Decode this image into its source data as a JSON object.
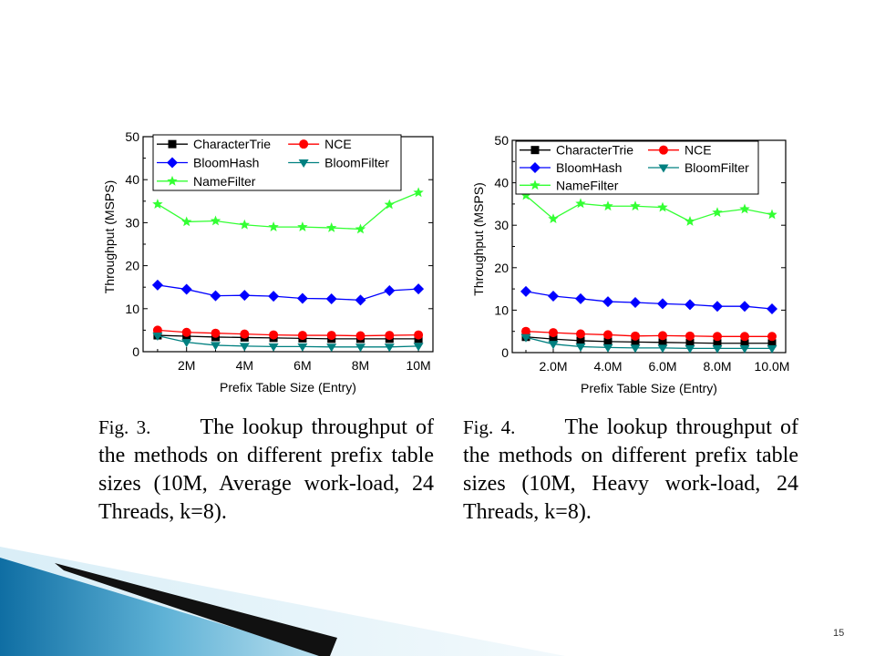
{
  "slide": {
    "page_number": "15"
  },
  "colors": {
    "CharacterTrie": "#000000",
    "NCE": "#ff0000",
    "BloomHash": "#0000ff",
    "BloomFilter": "#008080",
    "NameFilter": "#33ff33"
  },
  "captions": [
    {
      "fig": "Fig. 3.",
      "text": "The lookup throughput of the methods on different prefix table sizes (10M, Average work-load, 24 Threads, k=8)."
    },
    {
      "fig": "Fig. 4.",
      "text": "The lookup throughput of the methods on different prefix table sizes (10M, Heavy work-load, 24 Threads, k=8)."
    }
  ],
  "chart_data": [
    {
      "type": "line",
      "xlabel": "Prefix Table Size (Entry)",
      "ylabel": "Throughput (MSPS)",
      "x": [
        1,
        2,
        3,
        4,
        5,
        6,
        7,
        8,
        9,
        10
      ],
      "xlim": [
        0.5,
        10.5
      ],
      "xticks": [
        2,
        4,
        6,
        8,
        10
      ],
      "xtick_labels": [
        "2M",
        "4M",
        "6M",
        "8M",
        "10M"
      ],
      "ylim": [
        0,
        50
      ],
      "yticks": [
        0,
        10,
        20,
        30,
        40,
        50
      ],
      "ytick_labels": [
        "0",
        "10",
        "20",
        "30",
        "40",
        "50"
      ],
      "legend_position": "top",
      "series": [
        {
          "name": "CharacterTrie",
          "marker": "square",
          "values": [
            3.8,
            3.6,
            3.4,
            3.3,
            3.2,
            3.1,
            3.0,
            3.0,
            3.0,
            3.0
          ]
        },
        {
          "name": "NCE",
          "marker": "circle",
          "values": [
            5.0,
            4.5,
            4.3,
            4.1,
            3.9,
            3.8,
            3.8,
            3.7,
            3.8,
            3.9
          ]
        },
        {
          "name": "BloomHash",
          "marker": "diamond",
          "values": [
            15.5,
            14.5,
            13.0,
            13.1,
            12.9,
            12.4,
            12.3,
            12.0,
            14.2,
            14.6
          ]
        },
        {
          "name": "BloomFilter",
          "marker": "triangle-down",
          "values": [
            3.7,
            2.2,
            1.5,
            1.3,
            1.2,
            1.2,
            1.1,
            1.1,
            1.1,
            1.3
          ]
        },
        {
          "name": "NameFilter",
          "marker": "star",
          "values": [
            34.3,
            30.2,
            30.4,
            29.5,
            29.0,
            29.0,
            28.8,
            28.5,
            34.2,
            37.0
          ]
        }
      ]
    },
    {
      "type": "line",
      "xlabel": "Prefix Table Size (Entry)",
      "ylabel": "Throughput (MSPS)",
      "x": [
        1,
        2,
        3,
        4,
        5,
        6,
        7,
        8,
        9,
        10
      ],
      "xlim": [
        0.5,
        10.5
      ],
      "xticks": [
        2,
        4,
        6,
        8,
        10
      ],
      "xtick_labels": [
        "2.0M",
        "4.0M",
        "6.0M",
        "8.0M",
        "10.0M"
      ],
      "ylim": [
        0,
        50
      ],
      "yticks": [
        0,
        10,
        20,
        30,
        40,
        50
      ],
      "ytick_labels": [
        "0",
        "10",
        "20",
        "30",
        "40",
        "50"
      ],
      "legend_position": "top",
      "series": [
        {
          "name": "CharacterTrie",
          "marker": "square",
          "values": [
            3.7,
            3.2,
            2.8,
            2.6,
            2.5,
            2.4,
            2.3,
            2.2,
            2.2,
            2.2
          ]
        },
        {
          "name": "NCE",
          "marker": "circle",
          "values": [
            5.0,
            4.7,
            4.4,
            4.2,
            3.9,
            4.0,
            3.9,
            3.8,
            3.8,
            3.8
          ]
        },
        {
          "name": "BloomHash",
          "marker": "diamond",
          "values": [
            14.4,
            13.3,
            12.7,
            12.0,
            11.8,
            11.5,
            11.3,
            10.9,
            10.9,
            10.3
          ]
        },
        {
          "name": "BloomFilter",
          "marker": "triangle-down",
          "values": [
            3.6,
            2.0,
            1.4,
            1.2,
            1.1,
            1.1,
            1.0,
            1.0,
            1.0,
            1.0
          ]
        },
        {
          "name": "NameFilter",
          "marker": "star",
          "values": [
            37.0,
            31.5,
            35.1,
            34.5,
            34.5,
            34.2,
            30.9,
            33.0,
            33.8,
            32.5
          ]
        }
      ]
    }
  ]
}
